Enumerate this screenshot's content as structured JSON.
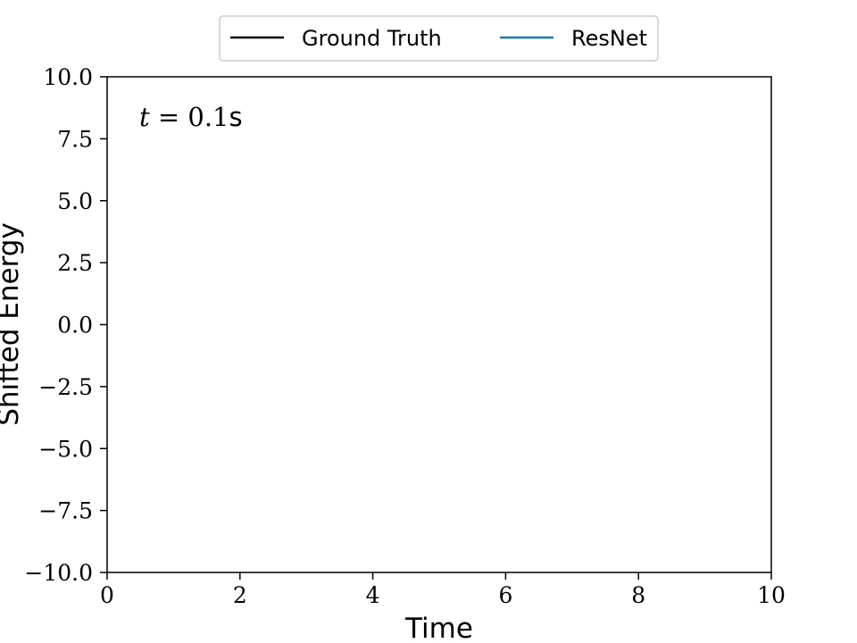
{
  "chart_data": {
    "type": "line",
    "title": "",
    "xlabel": "Time",
    "ylabel": "Shifted Energy",
    "xlim": [
      0,
      10
    ],
    "ylim": [
      -10.0,
      10.0
    ],
    "xticks": [
      0,
      2,
      4,
      6,
      8,
      10
    ],
    "xtick_labels": [
      "0",
      "2",
      "4",
      "6",
      "8",
      "10"
    ],
    "yticks": [
      -10.0,
      -7.5,
      -5.0,
      -2.5,
      0.0,
      2.5,
      5.0,
      7.5,
      10.0
    ],
    "ytick_labels": [
      "−10.0",
      "−7.5",
      "−5.0",
      "−2.5",
      "0.0",
      "2.5",
      "5.0",
      "7.5",
      "10.0"
    ],
    "grid": false,
    "legend_position": "above-center",
    "series": [
      {
        "name": "Ground Truth",
        "color": "#000000",
        "x": [],
        "y": []
      },
      {
        "name": "ResNet",
        "color": "#1f77b4",
        "x": [],
        "y": []
      }
    ],
    "annotation": {
      "var": "t",
      "equals": " = 0.1",
      "unit": "s",
      "position": "top-left"
    }
  }
}
